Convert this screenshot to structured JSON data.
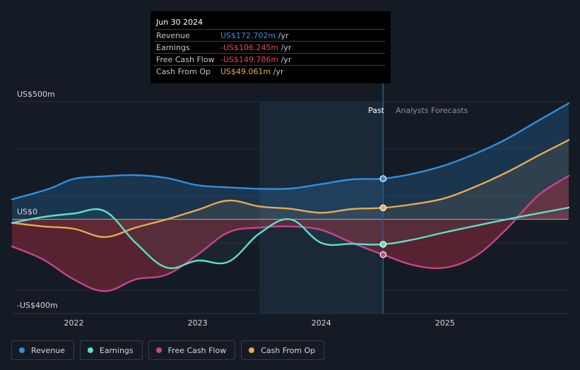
{
  "tooltip": {
    "date": "Jun 30 2024",
    "rows": [
      {
        "label": "Revenue",
        "value": "US$172.702m",
        "unit": " /yr",
        "color": "#2e90e0"
      },
      {
        "label": "Earnings",
        "value": "-US$106.245m",
        "unit": " /yr",
        "color": "#e5484d"
      },
      {
        "label": "Free Cash Flow",
        "value": "-US$149.786m",
        "unit": " /yr",
        "color": "#e5484d"
      },
      {
        "label": "Cash From Op",
        "value": "US$49.061m",
        "unit": " /yr",
        "color": "#e8a954"
      }
    ]
  },
  "legend": [
    {
      "label": "Revenue",
      "color": "#2e90e0"
    },
    {
      "label": "Earnings",
      "color": "#5ee0c6"
    },
    {
      "label": "Free Cash Flow",
      "color": "#c4468d"
    },
    {
      "label": "Cash From Op",
      "color": "#e8a954"
    }
  ],
  "labels": {
    "past": "Past",
    "forecast": "Analysts Forecasts"
  },
  "colors": {
    "background": "#151b24",
    "past_band": "#1b2838",
    "revenue": "#2e90e0",
    "earnings": "#5ee0c6",
    "fcf": "#c4468d",
    "cfo": "#e8a954",
    "negative_fill": "#8e2a3a"
  },
  "chart_data": {
    "type": "line",
    "title": "",
    "xlabel": "",
    "ylabel": "",
    "x_ticks": [
      {
        "label": "2022",
        "value": 2022.0
      },
      {
        "label": "2023",
        "value": 2023.0
      },
      {
        "label": "2024",
        "value": 2024.0
      },
      {
        "label": "2025",
        "value": 2025.0
      }
    ],
    "y_ticks": [
      {
        "label": "US$500m",
        "value": 500
      },
      {
        "label": "US$0",
        "value": 0
      },
      {
        "label": "-US$400m",
        "value": -400
      }
    ],
    "xlim": [
      2021.5,
      2026.0
    ],
    "ylim": [
      -400,
      500
    ],
    "past_band": [
      2023.5,
      2024.5
    ],
    "highlight_x": 2024.5,
    "unit": "US$m",
    "series": [
      {
        "name": "Revenue",
        "key": "revenue",
        "x": [
          2021.5,
          2021.8,
          2022.0,
          2022.25,
          2022.5,
          2022.75,
          2023.0,
          2023.25,
          2023.5,
          2023.75,
          2024.0,
          2024.25,
          2024.5,
          2024.75,
          2025.0,
          2025.25,
          2025.5,
          2025.75,
          2026.0
        ],
        "y": [
          85,
          130,
          172,
          183,
          188,
          176,
          145,
          136,
          130,
          131,
          150,
          170,
          173,
          195,
          230,
          280,
          342,
          418,
          493
        ]
      },
      {
        "name": "Earnings",
        "key": "earnings",
        "x": [
          2021.5,
          2021.75,
          2022.0,
          2022.25,
          2022.5,
          2022.75,
          2023.0,
          2023.25,
          2023.5,
          2023.75,
          2024.0,
          2024.25,
          2024.5,
          2024.75,
          2025.0,
          2025.5,
          2026.0
        ],
        "y": [
          -15,
          10,
          25,
          35,
          -100,
          -205,
          -175,
          -180,
          -60,
          0,
          -100,
          -104,
          -106,
          -85,
          -55,
          0,
          50
        ]
      },
      {
        "name": "Free Cash Flow",
        "key": "fcf",
        "x": [
          2021.5,
          2021.75,
          2022.0,
          2022.25,
          2022.5,
          2022.75,
          2023.0,
          2023.25,
          2023.5,
          2023.75,
          2024.0,
          2024.25,
          2024.5,
          2024.75,
          2025.0,
          2025.25,
          2025.5,
          2025.75,
          2026.0
        ],
        "y": [
          -115,
          -170,
          -255,
          -305,
          -255,
          -235,
          -150,
          -55,
          -35,
          -30,
          -45,
          -100,
          -150,
          -195,
          -205,
          -155,
          -40,
          100,
          185
        ]
      },
      {
        "name": "Cash From Op",
        "key": "cfo",
        "x": [
          2021.5,
          2021.75,
          2022.0,
          2022.25,
          2022.5,
          2022.75,
          2023.0,
          2023.25,
          2023.5,
          2023.75,
          2024.0,
          2024.25,
          2024.5,
          2024.75,
          2025.0,
          2025.25,
          2025.5,
          2025.75,
          2026.0
        ],
        "y": [
          -15,
          -30,
          -40,
          -75,
          -35,
          0,
          40,
          80,
          55,
          45,
          28,
          44,
          49,
          65,
          90,
          140,
          200,
          270,
          337
        ]
      }
    ]
  }
}
